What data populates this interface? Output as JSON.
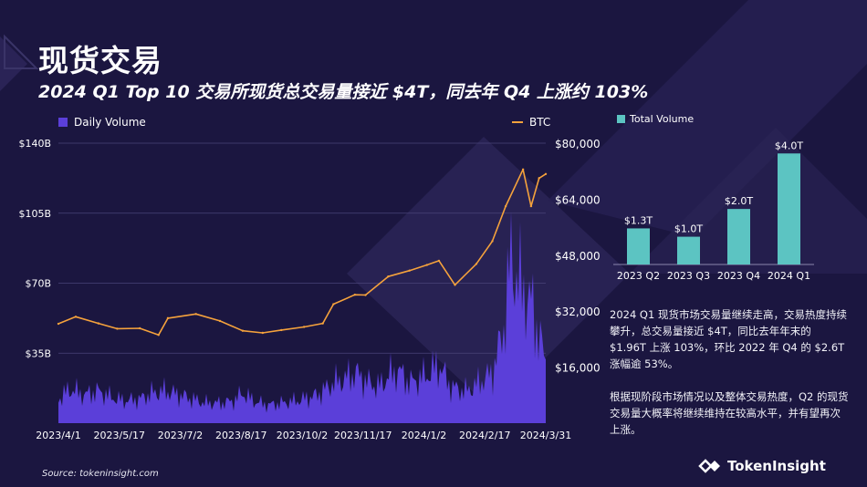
{
  "title": "现货交易",
  "subtitle": "2024 Q1 Top 10 交易所现货总交易量接近 $4T，同去年 Q4 上涨约 103%",
  "source": "Source: tokeninsight.com",
  "brand": "TokenInsight",
  "description": [
    "2024 Q1 现货市场交易量继续走高，交易热度持续攀升，总交易量接近 $4T，同比去年年末的 $1.96T 上涨 103%，环比 2022 年 Q4 的 $2.6T 涨幅逾 53%。",
    "根据现阶段市场情况以及整体交易热度，Q2 的现货交易量大概率将继续维持在较高水平，并有望再次上涨。"
  ],
  "colors": {
    "volume": "#5b3fd9",
    "btc": "#f5a23c",
    "total": "#5cc4c2",
    "background": "#1b1640"
  },
  "chart_data": [
    {
      "type": "area+line",
      "legend": {
        "volume": "Daily Volume",
        "btc": "BTC"
      },
      "x_tick_labels": [
        "2023/4/1",
        "2023/5/17",
        "2023/7/2",
        "2023/8/17",
        "2023/10/2",
        "2023/11/17",
        "2024/1/2",
        "2024/2/17",
        "2024/3/31"
      ],
      "left_axis_labels": [
        "$35B",
        "$70B",
        "$105B",
        "$140B"
      ],
      "left_axis_values": [
        35,
        70,
        105,
        140
      ],
      "left_ylim": [
        0,
        140
      ],
      "right_axis_labels": [
        "$16,000",
        "$32,000",
        "$48,000",
        "$64,000",
        "$80,000"
      ],
      "right_axis_values": [
        16000,
        32000,
        48000,
        64000,
        80000
      ],
      "right_ylim": [
        0,
        80000
      ],
      "grid": true,
      "series": [
        {
          "name": "Daily Volume",
          "axis": "left",
          "unit": "B USD",
          "points": [
            [
              "2023-04-01",
              12
            ],
            [
              "2023-04-10",
              17
            ],
            [
              "2023-04-20",
              14
            ],
            [
              "2023-05-01",
              16
            ],
            [
              "2023-05-10",
              13
            ],
            [
              "2023-05-20",
              11
            ],
            [
              "2023-06-01",
              12
            ],
            [
              "2023-06-10",
              15
            ],
            [
              "2023-06-20",
              16
            ],
            [
              "2023-07-01",
              14
            ],
            [
              "2023-07-10",
              12
            ],
            [
              "2023-07-20",
              10
            ],
            [
              "2023-08-01",
              10
            ],
            [
              "2023-08-10",
              11
            ],
            [
              "2023-08-17",
              15
            ],
            [
              "2023-08-25",
              11
            ],
            [
              "2023-09-05",
              9
            ],
            [
              "2023-09-15",
              10
            ],
            [
              "2023-09-25",
              11
            ],
            [
              "2023-10-02",
              12
            ],
            [
              "2023-10-12",
              14
            ],
            [
              "2023-10-24",
              20
            ],
            [
              "2023-11-01",
              22
            ],
            [
              "2023-11-10",
              25
            ],
            [
              "2023-11-17",
              21
            ],
            [
              "2023-11-27",
              18
            ],
            [
              "2023-12-05",
              24
            ],
            [
              "2023-12-12",
              26
            ],
            [
              "2023-12-20",
              20
            ],
            [
              "2024-01-02",
              24
            ],
            [
              "2024-01-11",
              29
            ],
            [
              "2024-01-20",
              18
            ],
            [
              "2024-01-31",
              16
            ],
            [
              "2024-02-10",
              20
            ],
            [
              "2024-02-20",
              25
            ],
            [
              "2024-02-28",
              45
            ],
            [
              "2024-03-05",
              82
            ],
            [
              "2024-03-12",
              68
            ],
            [
              "2024-03-20",
              60
            ],
            [
              "2024-03-31",
              30
            ]
          ]
        },
        {
          "name": "BTC",
          "axis": "right",
          "unit": "USD",
          "points": [
            [
              "2023-04-01",
              28400
            ],
            [
              "2023-04-14",
              30400
            ],
            [
              "2023-05-01",
              28500
            ],
            [
              "2023-05-15",
              27000
            ],
            [
              "2023-06-01",
              27100
            ],
            [
              "2023-06-15",
              25200
            ],
            [
              "2023-06-22",
              30000
            ],
            [
              "2023-07-13",
              31200
            ],
            [
              "2023-07-31",
              29200
            ],
            [
              "2023-08-17",
              26400
            ],
            [
              "2023-09-01",
              25800
            ],
            [
              "2023-09-15",
              26600
            ],
            [
              "2023-10-02",
              27500
            ],
            [
              "2023-10-16",
              28500
            ],
            [
              "2023-10-24",
              34000
            ],
            [
              "2023-11-09",
              36700
            ],
            [
              "2023-11-17",
              36600
            ],
            [
              "2023-12-04",
              41900
            ],
            [
              "2023-12-20",
              43600
            ],
            [
              "2024-01-02",
              45200
            ],
            [
              "2024-01-11",
              46400
            ],
            [
              "2024-01-23",
              39500
            ],
            [
              "2024-02-08",
              45500
            ],
            [
              "2024-02-20",
              52000
            ],
            [
              "2024-03-01",
              62000
            ],
            [
              "2024-03-14",
              72500
            ],
            [
              "2024-03-20",
              62000
            ],
            [
              "2024-03-26",
              70000
            ],
            [
              "2024-03-31",
              71200
            ]
          ]
        }
      ]
    },
    {
      "type": "bar",
      "legend": "Total Volume",
      "categories": [
        "2023 Q2",
        "2023 Q3",
        "2023 Q4",
        "2024 Q1"
      ],
      "values": [
        1.3,
        1.0,
        2.0,
        4.0
      ],
      "value_labels": [
        "$1.3T",
        "$1.0T",
        "$2.0T",
        "$4.0T"
      ],
      "unit": "T USD",
      "ylim": [
        0,
        4.6
      ]
    }
  ]
}
